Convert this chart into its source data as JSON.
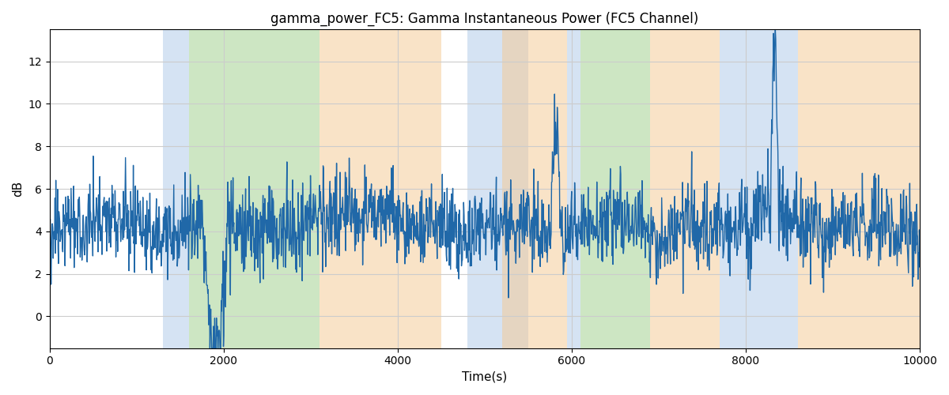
{
  "title": "gamma_power_FC5: Gamma Instantaneous Power (FC5 Channel)",
  "xlabel": "Time(s)",
  "ylabel": "dB",
  "xlim": [
    0,
    10000
  ],
  "ylim": [
    -1.5,
    13.5
  ],
  "line_color": "#2068a8",
  "line_width": 1.0,
  "background_regions": [
    {
      "xmin": 1300,
      "xmax": 1600,
      "color": "#adc8e8",
      "alpha": 0.5
    },
    {
      "xmin": 1600,
      "xmax": 3100,
      "color": "#90c87a",
      "alpha": 0.45
    },
    {
      "xmin": 3100,
      "xmax": 4500,
      "color": "#f5c890",
      "alpha": 0.5
    },
    {
      "xmin": 4800,
      "xmax": 5500,
      "color": "#adc8e8",
      "alpha": 0.5
    },
    {
      "xmin": 5200,
      "xmax": 5950,
      "color": "#f5c890",
      "alpha": 0.5
    },
    {
      "xmin": 5950,
      "xmax": 6100,
      "color": "#adc8e8",
      "alpha": 0.5
    },
    {
      "xmin": 6100,
      "xmax": 6900,
      "color": "#90c87a",
      "alpha": 0.45
    },
    {
      "xmin": 6900,
      "xmax": 7700,
      "color": "#f5c890",
      "alpha": 0.5
    },
    {
      "xmin": 7700,
      "xmax": 8600,
      "color": "#adc8e8",
      "alpha": 0.5
    },
    {
      "xmin": 8600,
      "xmax": 10100,
      "color": "#f5c890",
      "alpha": 0.5
    }
  ],
  "yticks": [
    0,
    2,
    4,
    6,
    8,
    10,
    12
  ],
  "xticks": [
    0,
    2000,
    4000,
    6000,
    8000,
    10000
  ],
  "grid_color": "#cccccc",
  "figsize": [
    12.0,
    5.0
  ],
  "dpi": 100
}
